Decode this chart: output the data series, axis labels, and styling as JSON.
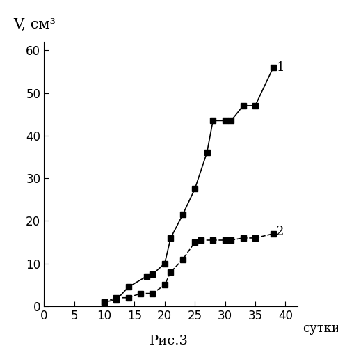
{
  "series1_x": [
    10,
    12,
    14,
    17,
    18,
    20,
    21,
    23,
    25,
    27,
    28,
    30,
    31,
    33,
    35,
    38
  ],
  "series1_y": [
    1,
    1.5,
    4.5,
    7,
    7.5,
    10,
    16,
    21.5,
    27.5,
    36,
    43.5,
    43.5,
    43.5,
    47,
    47,
    56
  ],
  "series2_x": [
    10,
    12,
    14,
    16,
    18,
    20,
    21,
    23,
    25,
    26,
    28,
    30,
    31,
    33,
    35,
    38
  ],
  "series2_y": [
    1,
    2,
    2,
    3,
    3,
    5,
    8,
    11,
    15,
    15.5,
    15.5,
    15.5,
    15.5,
    16,
    16,
    17
  ],
  "label1": "1",
  "label2": "2",
  "xlabel": "сутки",
  "ylabel": "V, см³",
  "xlim": [
    0,
    42
  ],
  "ylim": [
    0,
    62
  ],
  "xticks": [
    0,
    5,
    10,
    15,
    20,
    25,
    30,
    35,
    40
  ],
  "yticks": [
    0,
    10,
    20,
    30,
    40,
    50,
    60
  ],
  "marker": "s",
  "line_color": "#000000",
  "marker_color": "#000000",
  "figcaption": "Рис.3",
  "tick_fontsize": 12,
  "series_label_fontsize": 13,
  "ylabel_fontsize": 15,
  "xlabel_fontsize": 13,
  "caption_fontsize": 14
}
